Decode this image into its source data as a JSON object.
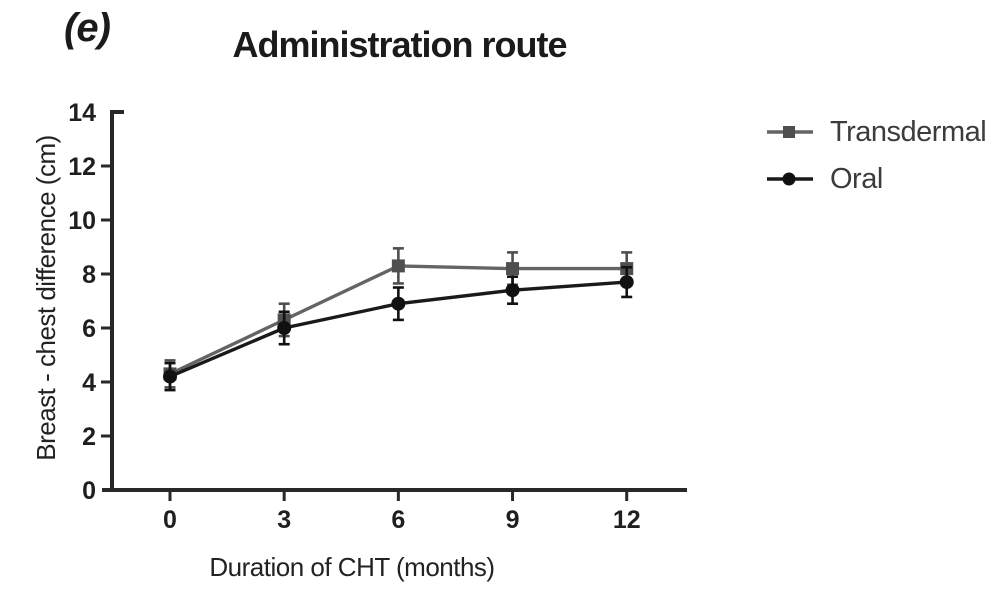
{
  "figure": {
    "panel_label": "(e)",
    "title": "Administration route"
  },
  "colors": {
    "axis": "#282828",
    "tick_text": "#1f1f1f",
    "transdermal": "#616161",
    "oral": "#161616"
  },
  "chart_data": {
    "type": "line",
    "title": "Administration route",
    "panel": "(e)",
    "xlabel": "Duration of CHT (months)",
    "ylabel": "Breast - chest difference (cm)",
    "x": [
      0,
      3,
      6,
      9,
      12
    ],
    "xticks": [
      0,
      3,
      6,
      9,
      12
    ],
    "yticks": [
      0,
      2,
      4,
      6,
      8,
      10,
      12,
      14
    ],
    "xlim": [
      0,
      13.6
    ],
    "ylim": [
      0,
      14
    ],
    "grid": false,
    "error_bars": true,
    "legend_position": "right-top",
    "series": [
      {
        "name": "Transdermal",
        "marker": "square",
        "line_color": "#646464",
        "marker_color": "#4f4f4f",
        "values": [
          4.3,
          6.3,
          8.3,
          8.2,
          8.2
        ],
        "errors": [
          0.5,
          0.6,
          0.65,
          0.6,
          0.6
        ]
      },
      {
        "name": "Oral",
        "marker": "circle",
        "line_color": "#1a1a1a",
        "marker_color": "#111111",
        "values": [
          4.2,
          6.0,
          6.9,
          7.4,
          7.7
        ],
        "errors": [
          0.5,
          0.6,
          0.6,
          0.5,
          0.55
        ]
      }
    ]
  }
}
